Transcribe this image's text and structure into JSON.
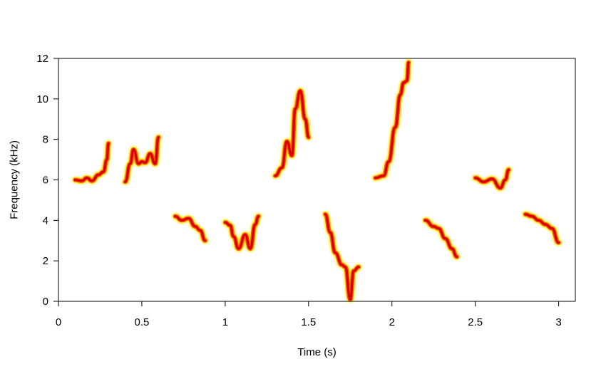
{
  "chart_data": {
    "type": "spectrogram",
    "xlabel": "Time (s)",
    "ylabel": "Frequency (kHz)",
    "xlim": [
      0,
      3.1
    ],
    "ylim": [
      0,
      12
    ],
    "xticks": [
      0,
      0.5,
      1,
      1.5,
      2,
      2.5,
      3
    ],
    "xtick_labels": [
      "0",
      "0.5",
      "1",
      "1.5",
      "2",
      "2.5",
      "3"
    ],
    "yticks": [
      0,
      2,
      4,
      6,
      8,
      10,
      12
    ],
    "ytick_labels": [
      "0",
      "2",
      "4",
      "6",
      "8",
      "10",
      "12"
    ],
    "grid": false,
    "colors": {
      "core": "#d40000",
      "mid": "#ff5a00",
      "edge": "#ffe600"
    },
    "syllables": [
      {
        "points": [
          [
            0.1,
            6.0
          ],
          [
            0.14,
            5.95
          ],
          [
            0.17,
            6.1
          ],
          [
            0.2,
            5.95
          ],
          [
            0.24,
            6.25
          ],
          [
            0.27,
            6.4
          ],
          [
            0.29,
            7.0
          ],
          [
            0.3,
            7.8
          ]
        ]
      },
      {
        "points": [
          [
            0.4,
            5.9
          ],
          [
            0.43,
            6.8
          ],
          [
            0.45,
            7.5
          ],
          [
            0.48,
            6.8
          ],
          [
            0.5,
            6.9
          ],
          [
            0.52,
            6.85
          ],
          [
            0.55,
            7.3
          ],
          [
            0.58,
            6.8
          ],
          [
            0.6,
            8.1
          ]
        ]
      },
      {
        "points": [
          [
            0.7,
            4.2
          ],
          [
            0.74,
            4.0
          ],
          [
            0.78,
            4.1
          ],
          [
            0.82,
            3.7
          ],
          [
            0.85,
            3.5
          ],
          [
            0.88,
            3.0
          ]
        ]
      },
      {
        "points": [
          [
            1.0,
            3.9
          ],
          [
            1.03,
            3.75
          ],
          [
            1.05,
            3.2
          ],
          [
            1.08,
            2.6
          ],
          [
            1.12,
            3.3
          ],
          [
            1.15,
            2.6
          ],
          [
            1.18,
            3.8
          ],
          [
            1.2,
            4.2
          ]
        ]
      },
      {
        "points": [
          [
            1.3,
            6.2
          ],
          [
            1.34,
            6.6
          ],
          [
            1.37,
            7.9
          ],
          [
            1.4,
            7.2
          ],
          [
            1.42,
            9.5
          ],
          [
            1.45,
            10.4
          ],
          [
            1.48,
            9.0
          ],
          [
            1.5,
            8.1
          ]
        ]
      },
      {
        "points": [
          [
            1.6,
            4.3
          ],
          [
            1.63,
            3.4
          ],
          [
            1.66,
            2.4
          ],
          [
            1.7,
            1.8
          ],
          [
            1.72,
            1.7
          ],
          [
            1.75,
            0.1
          ],
          [
            1.77,
            1.5
          ],
          [
            1.8,
            1.7
          ]
        ]
      },
      {
        "points": [
          [
            1.9,
            6.1
          ],
          [
            1.95,
            6.2
          ],
          [
            1.98,
            6.9
          ],
          [
            2.02,
            8.6
          ],
          [
            2.05,
            10.2
          ],
          [
            2.07,
            10.8
          ],
          [
            2.09,
            10.9
          ],
          [
            2.1,
            11.8
          ]
        ]
      },
      {
        "points": [
          [
            2.2,
            4.0
          ],
          [
            2.25,
            3.7
          ],
          [
            2.28,
            3.6
          ],
          [
            2.32,
            3.1
          ],
          [
            2.36,
            2.6
          ],
          [
            2.39,
            2.2
          ]
        ]
      },
      {
        "points": [
          [
            2.5,
            6.1
          ],
          [
            2.55,
            5.9
          ],
          [
            2.6,
            6.05
          ],
          [
            2.65,
            5.6
          ],
          [
            2.68,
            6.0
          ],
          [
            2.7,
            6.5
          ]
        ]
      },
      {
        "points": [
          [
            2.8,
            4.3
          ],
          [
            2.84,
            4.2
          ],
          [
            2.88,
            4.0
          ],
          [
            2.92,
            3.8
          ],
          [
            2.96,
            3.6
          ],
          [
            3.0,
            2.9
          ]
        ]
      }
    ]
  }
}
